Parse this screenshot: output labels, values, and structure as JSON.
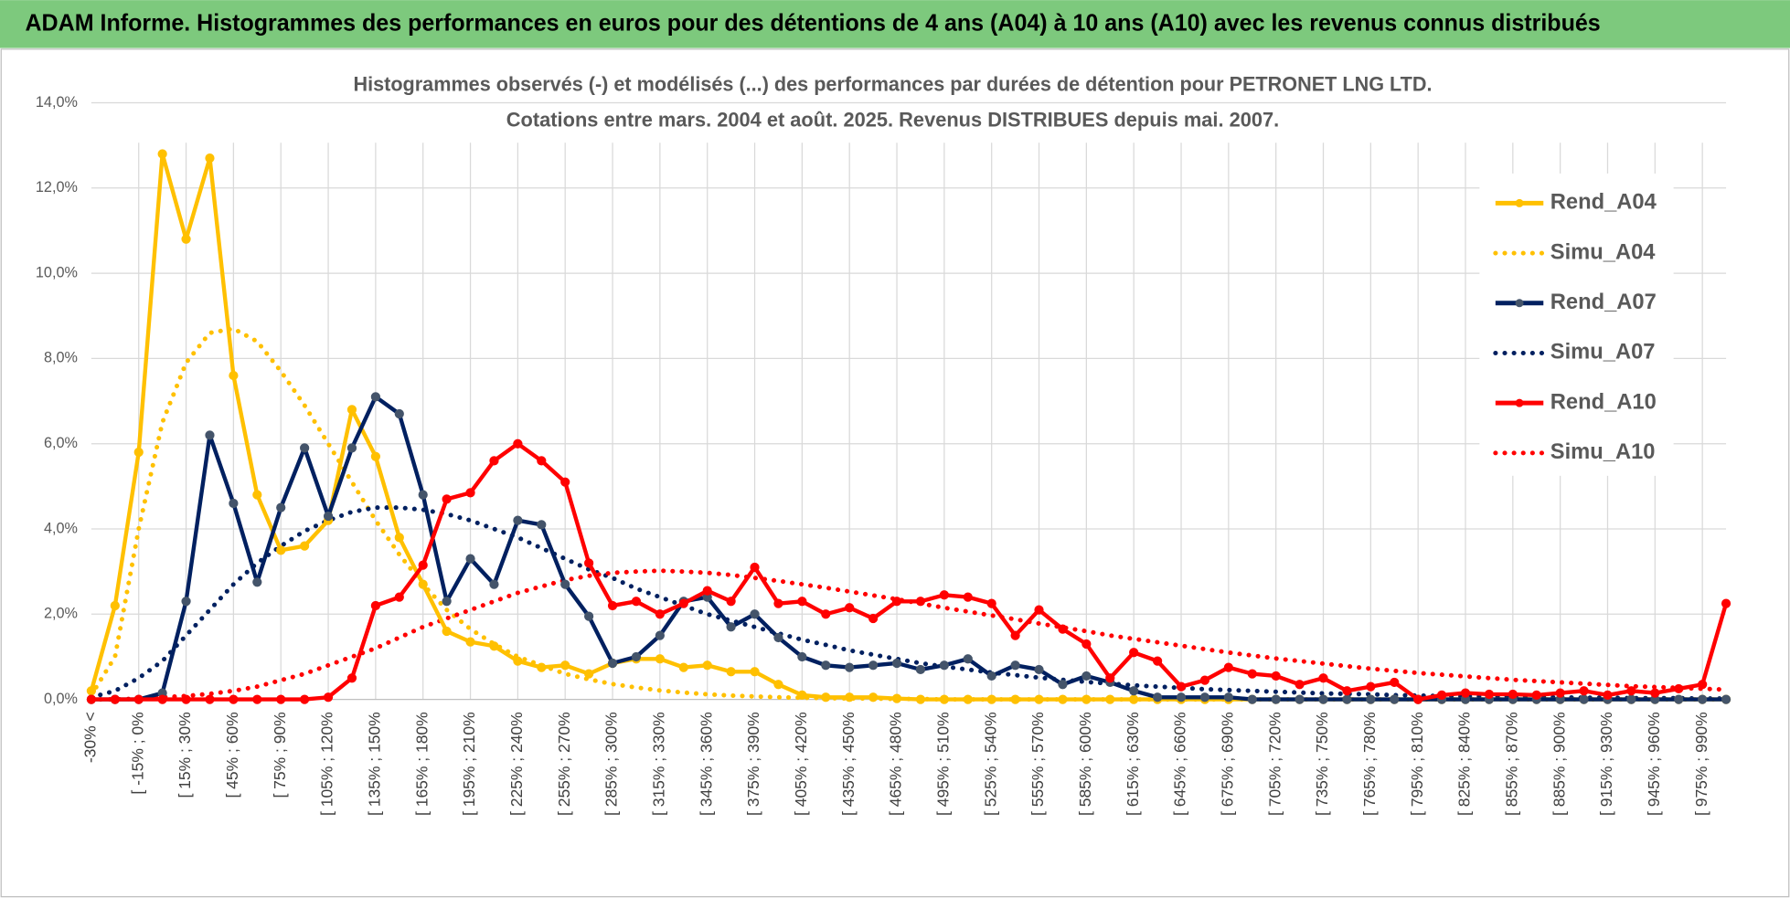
{
  "header": {
    "title": "ADAM Informe. Histogrammes des performances en euros pour des détentions de 4 ans (A04) à 10 ans (A10) avec les revenus connus distribués"
  },
  "chart_data": {
    "type": "line",
    "title": "Histogrammes observés (-) et modélisés (...) des performances par durées de détention pour PETRONET LNG LTD.",
    "subtitle": "Cotations entre mars. 2004 et août. 2025. Revenus DISTRIBUES depuis mai. 2007.",
    "categories": [
      "-30% <",
      null,
      "[ -15% ; 0%",
      null,
      "[ 15% ; 30%",
      null,
      "[ 45% ; 60%",
      null,
      "[ 75% ; 90%",
      null,
      "[ 105% ; 120%",
      null,
      "[ 135% ; 150%",
      null,
      "[ 165% ; 180%",
      null,
      "[ 195% ; 210%",
      null,
      "[ 225% ; 240%",
      null,
      "[ 255% ; 270%",
      null,
      "[ 285% ; 300%",
      null,
      "[ 315% ; 330%",
      null,
      "[ 345% ; 360%",
      null,
      "[ 375% ; 390%",
      null,
      "[ 405% ; 420%",
      null,
      "[ 435% ; 450%",
      null,
      "[ 465% ; 480%",
      null,
      "[ 495% ; 510%",
      null,
      "[ 525% ; 540%",
      null,
      "[ 555% ; 570%",
      null,
      "[ 585% ; 600%",
      null,
      "[ 615% ; 630%",
      null,
      "[ 645% ; 660%",
      null,
      "[ 675% ; 690%",
      null,
      "[ 705% ; 720%",
      null,
      "[ 735% ; 750%",
      null,
      "[ 765% ; 780%",
      null,
      "[ 795% ; 810%",
      null,
      "[ 825% ; 840%",
      null,
      "[ 855% ; 870%",
      null,
      "[ 885% ; 900%",
      null,
      "[ 915% ; 930%",
      null,
      "[ 945% ; 960%",
      null,
      "[ 975% ; 990%",
      null
    ],
    "ylim": [
      0,
      14
    ],
    "yticks": [
      {
        "value": 0,
        "label": "0,0%"
      },
      {
        "value": 2,
        "label": "2,0%"
      },
      {
        "value": 4,
        "label": "4,0%"
      },
      {
        "value": 6,
        "label": "6,0%"
      },
      {
        "value": 8,
        "label": "8,0%"
      },
      {
        "value": 10,
        "label": "10,0%"
      },
      {
        "value": 12,
        "label": "12,0%"
      },
      {
        "value": 14,
        "label": "14,0%"
      }
    ],
    "grid": true,
    "legend": "right",
    "series": [
      {
        "name": "Rend_A04",
        "color": "#ffc000",
        "style": "solid",
        "markers": true,
        "values": [
          0.2,
          2.2,
          5.8,
          12.8,
          10.8,
          12.7,
          7.6,
          4.8,
          3.5,
          3.6,
          4.2,
          6.8,
          5.7,
          3.8,
          2.7,
          1.6,
          1.35,
          1.25,
          0.9,
          0.75,
          0.8,
          0.6,
          0.85,
          0.95,
          0.95,
          0.75,
          0.8,
          0.65,
          0.65,
          0.35,
          0.1,
          0.05,
          0.05,
          0.05,
          0.02,
          0,
          0,
          0,
          0,
          0,
          0,
          0,
          0,
          0,
          0,
          0,
          0,
          0,
          0,
          0,
          0,
          0,
          0,
          0,
          0,
          0,
          0,
          0,
          0,
          0,
          0,
          0,
          0,
          0,
          0,
          0,
          0,
          0,
          0,
          0
        ]
      },
      {
        "name": "Simu_A04",
        "color": "#ffc000",
        "style": "dotted",
        "markers": false,
        "values": [
          0.1,
          1.0,
          4.0,
          6.5,
          7.9,
          8.6,
          8.7,
          8.4,
          7.7,
          6.9,
          6.0,
          5.1,
          4.2,
          3.4,
          2.7,
          2.1,
          1.65,
          1.3,
          1.0,
          0.8,
          0.6,
          0.47,
          0.36,
          0.28,
          0.21,
          0.16,
          0.12,
          0.09,
          0.07,
          0.05,
          0.04,
          0.03,
          0.02,
          0.02,
          0.01,
          0.01,
          0,
          0,
          0,
          0,
          0,
          0,
          0,
          0,
          0,
          0,
          0,
          0,
          0,
          0,
          0,
          0,
          0,
          0,
          0,
          0,
          0,
          0,
          0,
          0,
          0,
          0,
          0,
          0,
          0,
          0,
          0,
          0,
          0,
          0
        ]
      },
      {
        "name": "Rend_A07",
        "color": "#002060",
        "marker_color": "#44546a",
        "style": "solid",
        "markers": true,
        "values": [
          0,
          0,
          0,
          0.15,
          2.3,
          6.2,
          4.6,
          2.75,
          4.5,
          5.9,
          4.3,
          5.9,
          7.1,
          6.7,
          4.8,
          2.3,
          3.3,
          2.7,
          4.2,
          4.1,
          2.7,
          1.95,
          0.85,
          1.0,
          1.5,
          2.3,
          2.4,
          1.7,
          2.0,
          1.45,
          1.0,
          0.8,
          0.75,
          0.8,
          0.85,
          0.7,
          0.8,
          0.95,
          0.55,
          0.8,
          0.7,
          0.35,
          0.55,
          0.4,
          0.2,
          0.05,
          0.05,
          0.05,
          0.05,
          0,
          0,
          0,
          0,
          0,
          0,
          0,
          0,
          0,
          0,
          0,
          0,
          0,
          0,
          0,
          0,
          0,
          0,
          0,
          0,
          0
        ]
      },
      {
        "name": "Simu_A07",
        "color": "#002060",
        "style": "dotted",
        "markers": false,
        "values": [
          0.05,
          0.2,
          0.5,
          0.9,
          1.5,
          2.1,
          2.7,
          3.2,
          3.6,
          3.95,
          4.2,
          4.4,
          4.5,
          4.5,
          4.45,
          4.35,
          4.2,
          4.0,
          3.8,
          3.55,
          3.3,
          3.05,
          2.85,
          2.6,
          2.4,
          2.2,
          2.0,
          1.85,
          1.7,
          1.55,
          1.4,
          1.28,
          1.15,
          1.05,
          0.95,
          0.85,
          0.77,
          0.7,
          0.63,
          0.57,
          0.51,
          0.46,
          0.41,
          0.37,
          0.33,
          0.3,
          0.27,
          0.24,
          0.22,
          0.2,
          0.18,
          0.16,
          0.14,
          0.13,
          0.12,
          0.1,
          0.09,
          0.08,
          0.07,
          0.07,
          0.06,
          0.05,
          0.05,
          0.04,
          0.04,
          0.03,
          0.03,
          0.03,
          0.02,
          0.02
        ]
      },
      {
        "name": "Rend_A10",
        "color": "#ff0000",
        "style": "solid",
        "markers": true,
        "values": [
          0,
          0,
          0,
          0,
          0,
          0,
          0,
          0,
          0,
          0,
          0.05,
          0.5,
          2.2,
          2.4,
          3.15,
          4.7,
          4.85,
          5.6,
          6.0,
          5.6,
          5.1,
          3.2,
          2.2,
          2.3,
          2.0,
          2.25,
          2.55,
          2.3,
          3.1,
          2.25,
          2.3,
          2.0,
          2.15,
          1.9,
          2.3,
          2.3,
          2.45,
          2.4,
          2.25,
          1.5,
          2.1,
          1.65,
          1.3,
          0.5,
          1.1,
          0.9,
          0.3,
          0.45,
          0.75,
          0.6,
          0.55,
          0.35,
          0.5,
          0.2,
          0.3,
          0.4,
          0,
          0.1,
          0.15,
          0.12,
          0.12,
          0.1,
          0.15,
          0.2,
          0.1,
          0.2,
          0.15,
          0.25,
          0.35,
          2.25
        ]
      },
      {
        "name": "Simu_A10",
        "color": "#ff0000",
        "style": "dotted",
        "markers": false,
        "values": [
          0,
          0,
          0.02,
          0.05,
          0.08,
          0.13,
          0.2,
          0.3,
          0.45,
          0.6,
          0.8,
          1.0,
          1.2,
          1.45,
          1.7,
          1.9,
          2.1,
          2.3,
          2.5,
          2.65,
          2.8,
          2.9,
          2.97,
          3.0,
          3.02,
          3.0,
          2.97,
          2.92,
          2.85,
          2.78,
          2.7,
          2.62,
          2.53,
          2.44,
          2.35,
          2.25,
          2.15,
          2.06,
          1.97,
          1.88,
          1.78,
          1.69,
          1.6,
          1.5,
          1.42,
          1.34,
          1.26,
          1.18,
          1.1,
          1.03,
          0.96,
          0.9,
          0.84,
          0.78,
          0.72,
          0.67,
          0.62,
          0.58,
          0.54,
          0.5,
          0.46,
          0.43,
          0.4,
          0.37,
          0.34,
          0.31,
          0.29,
          0.27,
          0.25,
          0.23
        ]
      }
    ]
  }
}
